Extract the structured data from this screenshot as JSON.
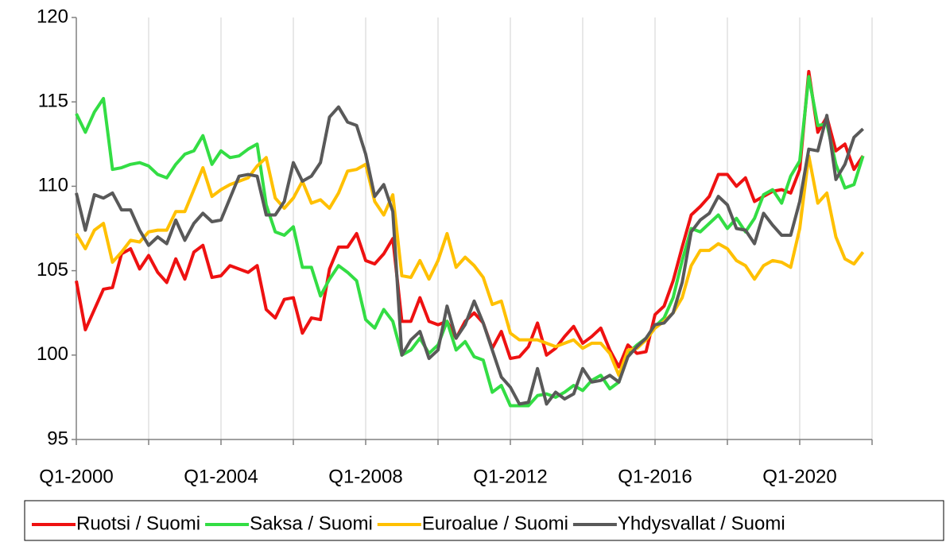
{
  "chart_data": {
    "type": "line",
    "categories": [
      "Q1-2000",
      null,
      null,
      null,
      null,
      null,
      null,
      null,
      null,
      null,
      null,
      null,
      null,
      null,
      null,
      null,
      "Q1-2004",
      null,
      null,
      null,
      null,
      null,
      null,
      null,
      null,
      null,
      null,
      null,
      null,
      null,
      null,
      null,
      "Q1-2008",
      null,
      null,
      null,
      null,
      null,
      null,
      null,
      null,
      null,
      null,
      null,
      null,
      null,
      null,
      null,
      "Q1-2012",
      null,
      null,
      null,
      null,
      null,
      null,
      null,
      null,
      null,
      null,
      null,
      null,
      null,
      null,
      null,
      "Q1-2016",
      null,
      null,
      null,
      null,
      null,
      null,
      null,
      null,
      null,
      null,
      null,
      null,
      null,
      null,
      null,
      "Q1-2020",
      null,
      null,
      null,
      null,
      null,
      null,
      null
    ],
    "series": [
      {
        "name": "Ruotsi / Suomi",
        "color": "#ee1111",
        "values": [
          104.4,
          101.5,
          102.7,
          103.9,
          104.0,
          106.0,
          106.3,
          105.1,
          105.9,
          104.9,
          104.3,
          105.7,
          104.5,
          106.1,
          106.5,
          104.6,
          104.7,
          105.3,
          105.1,
          104.9,
          105.3,
          102.7,
          102.2,
          103.3,
          103.4,
          101.3,
          102.2,
          102.1,
          105.1,
          106.4,
          106.4,
          107.2,
          105.6,
          105.4,
          106.0,
          106.9,
          102.0,
          102.0,
          103.4,
          102.0,
          101.8,
          102.0,
          101.0,
          102.0,
          102.5,
          101.9,
          100.4,
          101.4,
          99.8,
          99.9,
          100.5,
          101.9,
          100.0,
          100.4,
          101.1,
          101.7,
          100.7,
          101.1,
          101.6,
          100.3,
          99.3,
          100.6,
          100.1,
          100.2,
          102.4,
          102.9,
          104.4,
          106.4,
          108.3,
          108.8,
          109.4,
          110.7,
          110.7,
          110.0,
          110.5,
          109.1,
          109.4,
          109.7,
          109.8,
          109.6,
          111.0,
          116.8,
          113.2,
          114.1,
          112.1,
          112.5,
          111.0,
          111.8
        ]
      },
      {
        "name": "Saksa / Suomi",
        "color": "#33dd44",
        "values": [
          114.3,
          113.2,
          114.4,
          115.2,
          111.0,
          111.1,
          111.3,
          111.4,
          111.2,
          110.7,
          110.5,
          111.3,
          111.9,
          112.1,
          113.0,
          111.3,
          112.1,
          111.7,
          111.8,
          112.2,
          112.5,
          108.9,
          107.3,
          107.1,
          107.6,
          105.2,
          105.2,
          103.5,
          104.5,
          105.3,
          104.9,
          104.4,
          102.1,
          101.6,
          102.7,
          102.0,
          100.0,
          100.3,
          101.0,
          100.1,
          100.6,
          102.0,
          100.3,
          100.8,
          99.9,
          99.7,
          97.8,
          98.2,
          97.0,
          97.0,
          97.0,
          97.6,
          97.7,
          97.5,
          97.8,
          98.2,
          97.9,
          98.5,
          98.8,
          98.0,
          98.4,
          100.1,
          100.6,
          101.0,
          101.7,
          102.2,
          103.4,
          105.6,
          107.5,
          107.3,
          107.8,
          108.3,
          107.5,
          108.1,
          107.3,
          108.1,
          109.5,
          109.8,
          109.0,
          110.6,
          111.5,
          116.5,
          113.6,
          113.7,
          111.3,
          109.9,
          110.1,
          111.8
        ]
      },
      {
        "name": "Euroalue / Suomi",
        "color": "#ffc000",
        "values": [
          107.2,
          106.3,
          107.4,
          107.8,
          105.5,
          106.1,
          106.8,
          106.7,
          107.3,
          107.4,
          107.4,
          108.5,
          108.5,
          109.8,
          111.1,
          109.4,
          109.8,
          110.1,
          110.3,
          110.5,
          111.2,
          111.7,
          109.3,
          108.7,
          109.3,
          110.3,
          109.0,
          109.2,
          108.7,
          109.6,
          110.9,
          111.0,
          111.3,
          109.1,
          108.3,
          109.5,
          104.7,
          104.6,
          105.6,
          104.5,
          105.6,
          107.2,
          105.2,
          105.8,
          105.3,
          104.6,
          103.0,
          103.2,
          101.3,
          100.9,
          100.9,
          100.9,
          100.7,
          100.5,
          100.7,
          100.9,
          100.4,
          100.7,
          100.7,
          100.1,
          98.8,
          100.3,
          100.4,
          100.9,
          101.6,
          102.0,
          102.5,
          103.4,
          105.3,
          106.2,
          106.2,
          106.6,
          106.3,
          105.6,
          105.3,
          104.5,
          105.3,
          105.6,
          105.5,
          105.2,
          107.5,
          111.8,
          109.0,
          109.6,
          107.0,
          105.7,
          105.4,
          106.1
        ]
      },
      {
        "name": "Yhdysvallat / Suomi",
        "color": "#595959",
        "values": [
          109.6,
          107.4,
          109.5,
          109.3,
          109.6,
          108.6,
          108.6,
          107.4,
          106.5,
          107.0,
          106.6,
          108.0,
          106.8,
          107.8,
          108.4,
          107.9,
          108.0,
          109.3,
          110.6,
          110.7,
          110.6,
          108.3,
          108.3,
          109.1,
          111.4,
          110.3,
          110.6,
          111.4,
          114.1,
          114.7,
          113.8,
          113.6,
          111.9,
          109.4,
          110.1,
          108.5,
          100.0,
          100.9,
          101.4,
          99.8,
          100.3,
          102.9,
          101.0,
          101.8,
          103.2,
          101.9,
          100.3,
          98.7,
          98.1,
          97.1,
          97.2,
          99.2,
          97.1,
          97.8,
          97.4,
          97.7,
          99.2,
          98.4,
          98.5,
          98.8,
          98.4,
          99.9,
          100.5,
          101.0,
          101.8,
          101.9,
          102.5,
          104.3,
          107.3,
          108.0,
          108.4,
          109.4,
          108.9,
          107.5,
          107.4,
          106.6,
          108.4,
          107.7,
          107.1,
          107.1,
          109.1,
          112.2,
          112.1,
          114.2,
          110.4,
          111.3,
          112.9,
          113.4
        ]
      }
    ],
    "ylim": [
      95,
      120
    ],
    "yticks": [
      95,
      100,
      105,
      110,
      115,
      120
    ],
    "grid": true,
    "legend": "bottom"
  }
}
